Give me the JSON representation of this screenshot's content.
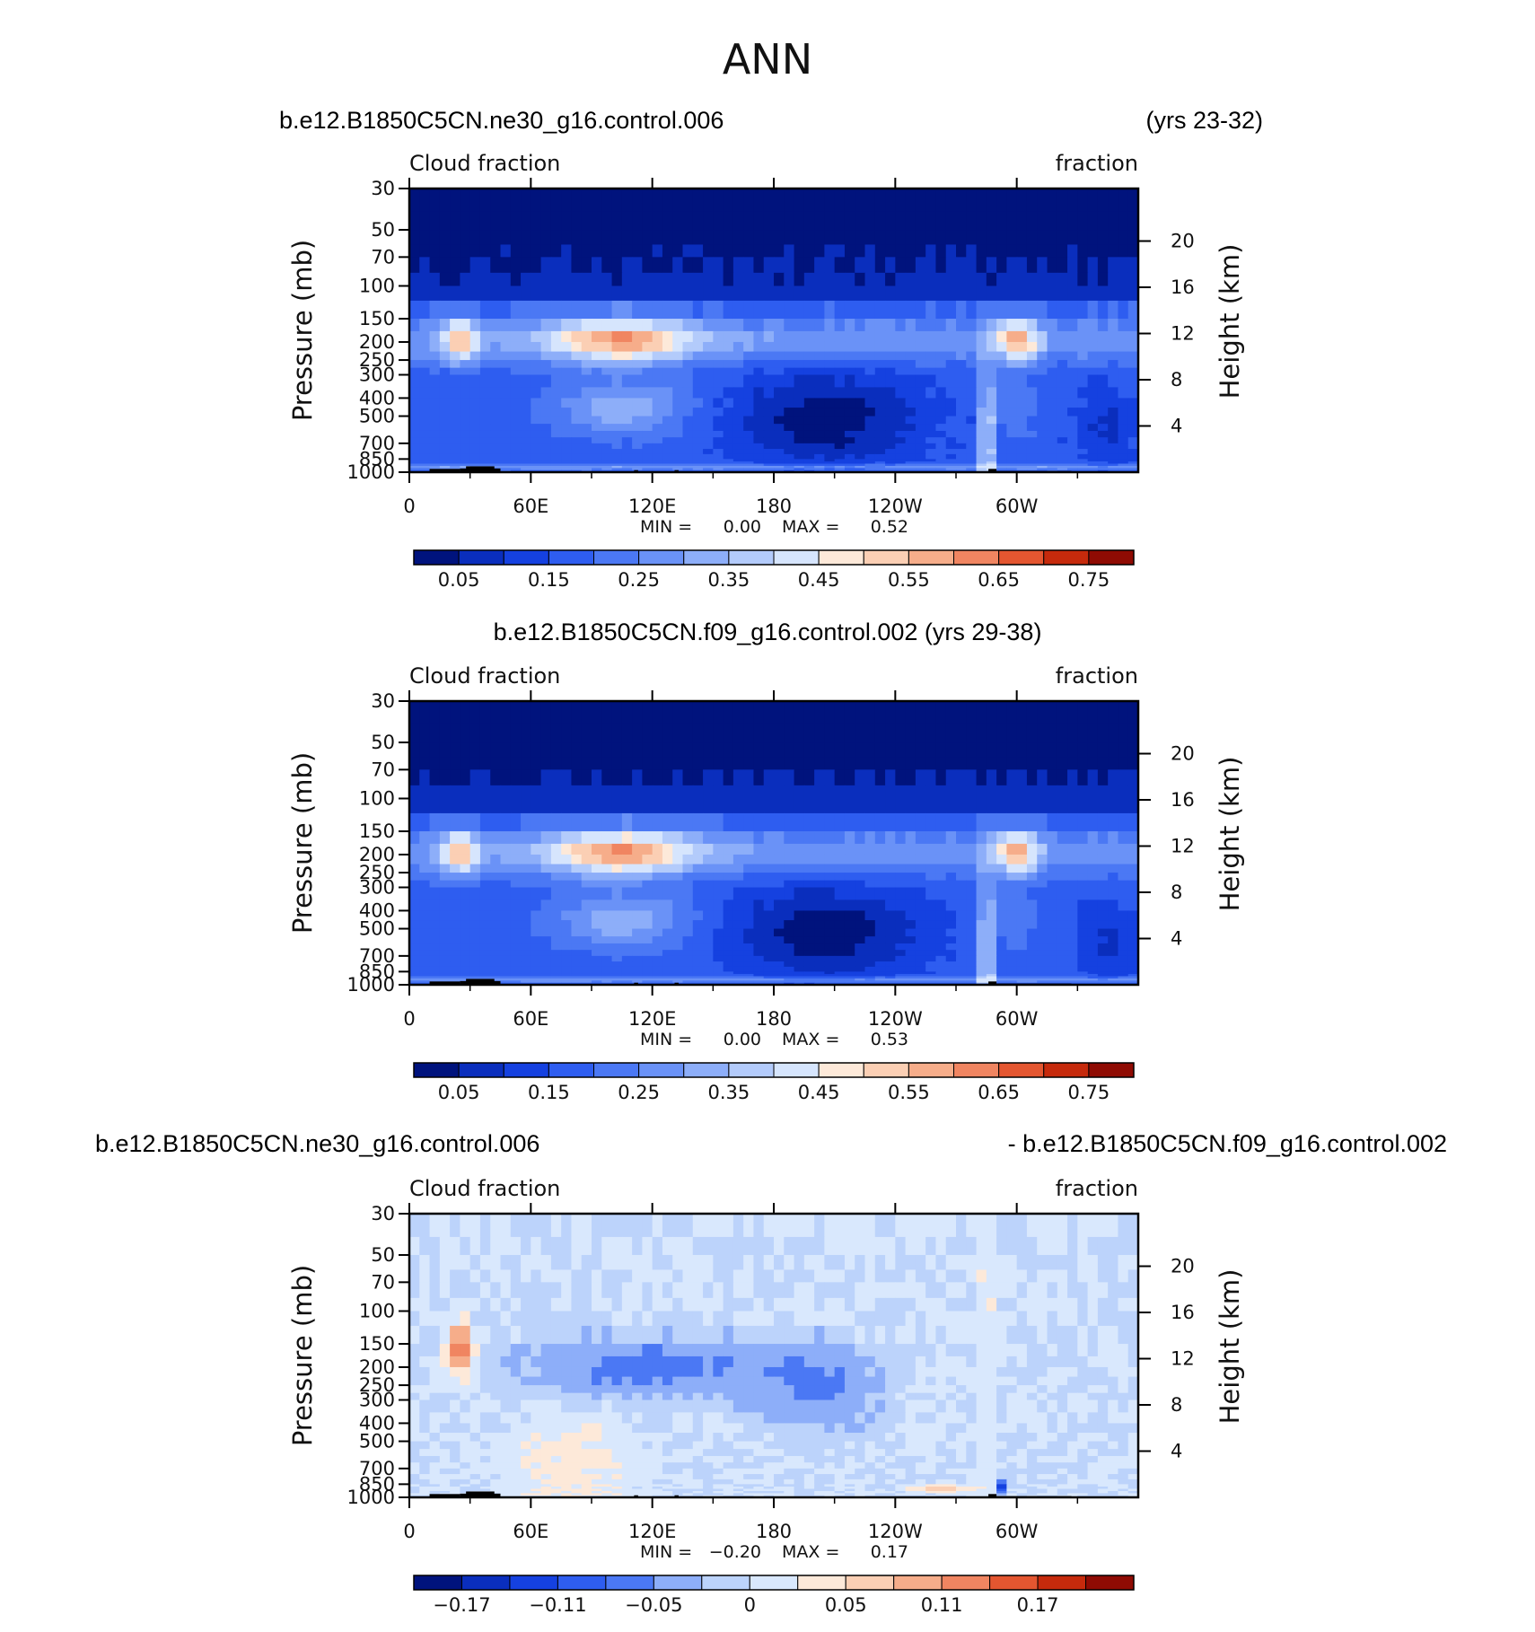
{
  "figure": {
    "title": "ANN"
  },
  "panels": [
    {
      "id": "p1",
      "title_left": "b.e12.B1850C5CN.ne30_g16.control.006",
      "title_right": "(yrs 23-32)",
      "title_center": "",
      "var_left": "Cloud fraction",
      "var_right": "fraction",
      "ylabel_left": "Pressure (mb)",
      "ylabel_right": "Height (km)",
      "min_text": "MIN =",
      "min_val": "0.00",
      "max_text": "MAX =",
      "max_val": "0.52",
      "cb_labels": [
        "0.05",
        "0.15",
        "0.25",
        "0.35",
        "0.45",
        "0.55",
        "0.65",
        "0.75"
      ]
    },
    {
      "id": "p2",
      "title_left": "",
      "title_right": "",
      "title_center": "b.e12.B1850C5CN.f09_g16.control.002 (yrs 29-38)",
      "var_left": "Cloud fraction",
      "var_right": "fraction",
      "ylabel_left": "Pressure (mb)",
      "ylabel_right": "Height (km)",
      "min_text": "MIN =",
      "min_val": "0.00",
      "max_text": "MAX =",
      "max_val": "0.53",
      "cb_labels": [
        "0.05",
        "0.15",
        "0.25",
        "0.35",
        "0.45",
        "0.55",
        "0.65",
        "0.75"
      ]
    },
    {
      "id": "p3",
      "title_left": "b.e12.B1850C5CN.ne30_g16.control.006",
      "title_right": "- b.e12.B1850C5CN.f09_g16.control.002",
      "title_center": "",
      "var_left": "Cloud fraction",
      "var_right": "fraction",
      "ylabel_left": "Pressure (mb)",
      "ylabel_right": "Height (km)",
      "min_text": "MIN =",
      "min_val": "−0.20",
      "max_text": "MAX =",
      "max_val": "0.17",
      "cb_labels": [
        "−0.17",
        "−0.11",
        "−0.05",
        "0",
        "0.05",
        "0.11",
        "0.17"
      ]
    }
  ],
  "chart_data": [
    {
      "type": "heatmap",
      "panel": "p1",
      "x_ticks": [
        "0",
        "60E",
        "120E",
        "180",
        "120W",
        "60W"
      ],
      "x_tick_values": [
        0,
        60,
        120,
        180,
        240,
        300
      ],
      "xlim": [
        0,
        360
      ],
      "y_ticks": [
        "30",
        "50",
        "70",
        "100",
        "150",
        "200",
        "250",
        "300",
        "400",
        "500",
        "700",
        "850",
        "1000"
      ],
      "y_tick_values": [
        30,
        50,
        70,
        100,
        150,
        200,
        250,
        300,
        400,
        500,
        700,
        850,
        1000
      ],
      "ylim": [
        1000,
        30
      ],
      "y_right_ticks": [
        "20",
        "16",
        "12",
        "8",
        "4"
      ],
      "y_right_values": [
        20,
        16,
        12,
        8,
        4
      ],
      "min": 0.0,
      "max": 0.52,
      "levels": [
        0.05,
        0.1,
        0.15,
        0.2,
        0.25,
        0.3,
        0.35,
        0.4,
        0.45,
        0.5,
        0.55,
        0.6,
        0.65,
        0.7,
        0.75
      ],
      "colors": [
        "#00137d",
        "#0a2ebd",
        "#1541e0",
        "#2e5df0",
        "#4b78f4",
        "#6a92f7",
        "#8daef9",
        "#b3cbfb",
        "#d6e5fd",
        "#fde9d9",
        "#fbcfb4",
        "#f6ad8a",
        "#f08561",
        "#e45630",
        "#c62a0c",
        "#8f0b03"
      ]
    },
    {
      "type": "heatmap",
      "panel": "p2",
      "x_ticks": [
        "0",
        "60E",
        "120E",
        "180",
        "120W",
        "60W"
      ],
      "x_tick_values": [
        0,
        60,
        120,
        180,
        240,
        300
      ],
      "xlim": [
        0,
        360
      ],
      "y_ticks": [
        "30",
        "50",
        "70",
        "100",
        "150",
        "200",
        "250",
        "300",
        "400",
        "500",
        "700",
        "850",
        "1000"
      ],
      "y_tick_values": [
        30,
        50,
        70,
        100,
        150,
        200,
        250,
        300,
        400,
        500,
        700,
        850,
        1000
      ],
      "ylim": [
        1000,
        30
      ],
      "y_right_ticks": [
        "20",
        "16",
        "12",
        "8",
        "4"
      ],
      "y_right_values": [
        20,
        16,
        12,
        8,
        4
      ],
      "min": 0.0,
      "max": 0.53,
      "levels": [
        0.05,
        0.1,
        0.15,
        0.2,
        0.25,
        0.3,
        0.35,
        0.4,
        0.45,
        0.5,
        0.55,
        0.6,
        0.65,
        0.7,
        0.75
      ],
      "colors": [
        "#00137d",
        "#0a2ebd",
        "#1541e0",
        "#2e5df0",
        "#4b78f4",
        "#6a92f7",
        "#8daef9",
        "#b3cbfb",
        "#d6e5fd",
        "#fde9d9",
        "#fbcfb4",
        "#f6ad8a",
        "#f08561",
        "#e45630",
        "#c62a0c",
        "#8f0b03"
      ]
    },
    {
      "type": "heatmap",
      "panel": "p3",
      "x_ticks": [
        "0",
        "60E",
        "120E",
        "180",
        "120W",
        "60W"
      ],
      "x_tick_values": [
        0,
        60,
        120,
        180,
        240,
        300
      ],
      "xlim": [
        0,
        360
      ],
      "y_ticks": [
        "30",
        "50",
        "70",
        "100",
        "150",
        "200",
        "250",
        "300",
        "400",
        "500",
        "700",
        "850",
        "1000"
      ],
      "y_tick_values": [
        30,
        50,
        70,
        100,
        150,
        200,
        250,
        300,
        400,
        500,
        700,
        850,
        1000
      ],
      "ylim": [
        1000,
        30
      ],
      "y_right_ticks": [
        "20",
        "16",
        "12",
        "8",
        "4"
      ],
      "y_right_values": [
        20,
        16,
        12,
        8,
        4
      ],
      "min": -0.2,
      "max": 0.17,
      "levels": [
        -0.17,
        -0.14,
        -0.11,
        -0.08,
        -0.05,
        -0.02,
        0,
        0.02,
        0.05,
        0.08,
        0.11,
        0.14,
        0.17
      ],
      "colors": [
        "#00137d",
        "#0a2ebd",
        "#1541e0",
        "#2e5df0",
        "#4b78f4",
        "#8daef9",
        "#bcd3fb",
        "#d9e8fd",
        "#fde9d9",
        "#fbcfb4",
        "#f6ad8a",
        "#f08561",
        "#e45630",
        "#c62a0c",
        "#8f0b03"
      ]
    }
  ]
}
